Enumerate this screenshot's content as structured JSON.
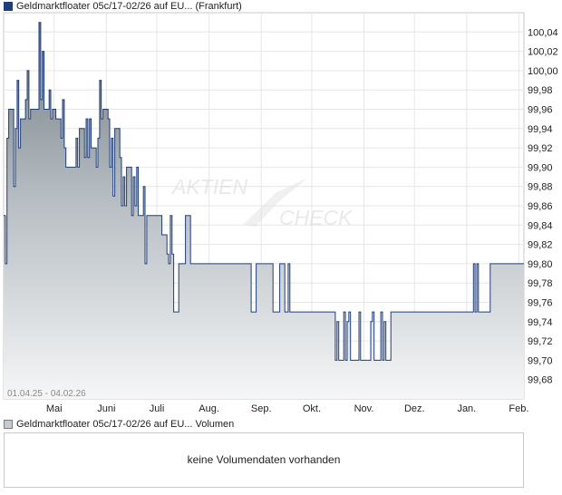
{
  "legend": {
    "price_label": "Geldmarktfloater 05c/17-02/26 auf EU... (Frankfurt)",
    "volume_label": "Geldmarktfloater 05c/17-02/26 auf EU... Volumen",
    "price_color": "#1f3d7a",
    "volume_color": "#c8cbcd"
  },
  "watermark": {
    "line1": "AKTIEN",
    "line2": "CHECK"
  },
  "volume_panel": {
    "message": "keine Volumendaten vorhanden"
  },
  "chart_data": {
    "type": "area",
    "date_range_label": "01.04.25 - 04.02.26",
    "x_range": [
      "2025-04-01",
      "2026-02-04"
    ],
    "ylim": [
      99.66,
      100.06
    ],
    "y_ticks": [
      "100,04",
      "100,02",
      "100,00",
      "99,98",
      "99,96",
      "99,94",
      "99,92",
      "99,90",
      "99,88",
      "99,86",
      "99,84",
      "99,82",
      "99,80",
      "99,78",
      "99,76",
      "99,74",
      "99,72",
      "99,70",
      "99,68"
    ],
    "x_ticks": [
      "Mai",
      "Juni",
      "Juli",
      "Aug.",
      "Sep.",
      "Okt.",
      "Nov.",
      "Dez.",
      "Jan.",
      "Feb."
    ],
    "grid": true,
    "series": [
      {
        "x": [
          "2025-04-01",
          "2025-04-02",
          "2025-04-03",
          "2025-04-04",
          "2025-04-07",
          "2025-04-08",
          "2025-04-09",
          "2025-04-10",
          "2025-04-11",
          "2025-04-14",
          "2025-04-15",
          "2025-04-16",
          "2025-04-17",
          "2025-04-22",
          "2025-04-23",
          "2025-04-24",
          "2025-04-25",
          "2025-04-28",
          "2025-04-29",
          "2025-04-30",
          "2025-05-02",
          "2025-05-05",
          "2025-05-06",
          "2025-05-07",
          "2025-05-08",
          "2025-05-09",
          "2025-05-12",
          "2025-05-13",
          "2025-05-14",
          "2025-05-15",
          "2025-05-16",
          "2025-05-19",
          "2025-05-20",
          "2025-05-21",
          "2025-05-22",
          "2025-05-23",
          "2025-05-26",
          "2025-05-27",
          "2025-05-28",
          "2025-05-29",
          "2025-05-30",
          "2025-06-02",
          "2025-06-03",
          "2025-06-04",
          "2025-06-05",
          "2025-06-06",
          "2025-06-09",
          "2025-06-10",
          "2025-06-11",
          "2025-06-12",
          "2025-06-13",
          "2025-06-16",
          "2025-06-17",
          "2025-06-18",
          "2025-06-19",
          "2025-06-20",
          "2025-06-23",
          "2025-06-24",
          "2025-06-25",
          "2025-06-26",
          "2025-06-27",
          "2025-06-30",
          "2025-07-01",
          "2025-07-02",
          "2025-07-03",
          "2025-07-04",
          "2025-07-07",
          "2025-07-08",
          "2025-07-09",
          "2025-07-10",
          "2025-07-11",
          "2025-07-14",
          "2025-07-15",
          "2025-07-16",
          "2025-07-17",
          "2025-07-18",
          "2025-07-21",
          "2025-07-22",
          "2025-07-23",
          "2025-07-24",
          "2025-07-25",
          "2025-07-28",
          "2025-07-29",
          "2025-07-30",
          "2025-07-31",
          "2025-08-01",
          "2025-08-04",
          "2025-08-05",
          "2025-08-06",
          "2025-08-07",
          "2025-08-08",
          "2025-08-11",
          "2025-08-12",
          "2025-08-13",
          "2025-08-14",
          "2025-08-15",
          "2025-08-18",
          "2025-08-19",
          "2025-08-20",
          "2025-08-21",
          "2025-08-22",
          "2025-08-25",
          "2025-08-26",
          "2025-08-27",
          "2025-08-28",
          "2025-08-29",
          "2025-09-01",
          "2025-09-08",
          "2025-09-12",
          "2025-09-15",
          "2025-09-16",
          "2025-09-17",
          "2025-09-18",
          "2025-09-19",
          "2025-09-22",
          "2025-09-26",
          "2025-09-29",
          "2025-09-30",
          "2025-10-01",
          "2025-10-02",
          "2025-10-06",
          "2025-10-14",
          "2025-10-15",
          "2025-10-16",
          "2025-10-17",
          "2025-10-20",
          "2025-10-21",
          "2025-10-22",
          "2025-10-23",
          "2025-10-24",
          "2025-10-27",
          "2025-10-28",
          "2025-10-29",
          "2025-10-30",
          "2025-10-31",
          "2025-11-03",
          "2025-11-04",
          "2025-11-05",
          "2025-11-06",
          "2025-11-07",
          "2025-11-10",
          "2025-11-11",
          "2025-11-12",
          "2025-11-13",
          "2025-11-14",
          "2025-11-17",
          "2025-11-18",
          "2025-11-19",
          "2025-11-20",
          "2025-11-21",
          "2025-11-24",
          "2025-11-25",
          "2025-11-26",
          "2025-11-27",
          "2025-11-28",
          "2025-12-01",
          "2025-12-10",
          "2025-12-20",
          "2025-12-31",
          "2026-01-02",
          "2026-01-05",
          "2026-01-06",
          "2026-01-07",
          "2026-01-08",
          "2026-01-09",
          "2026-01-12",
          "2026-01-13",
          "2026-01-14",
          "2026-01-15",
          "2026-01-16",
          "2026-01-19",
          "2026-01-20",
          "2026-01-21",
          "2026-01-22",
          "2026-01-23",
          "2026-01-26",
          "2026-01-27",
          "2026-01-28",
          "2026-01-29",
          "2026-01-30",
          "2026-02-02",
          "2026-02-03",
          "2026-02-04"
        ],
        "y": [
          99.85,
          99.8,
          99.93,
          99.96,
          99.88,
          99.94,
          99.99,
          99.92,
          99.95,
          99.97,
          100.0,
          99.95,
          99.96,
          100.05,
          99.97,
          100.02,
          99.96,
          99.98,
          99.95,
          99.96,
          99.95,
          99.93,
          99.97,
          99.92,
          99.9,
          99.9,
          99.9,
          99.9,
          99.93,
          99.9,
          99.94,
          99.91,
          99.95,
          99.91,
          99.95,
          99.92,
          99.9,
          99.93,
          99.99,
          99.95,
          99.96,
          99.95,
          99.9,
          99.93,
          99.87,
          99.94,
          99.91,
          99.86,
          99.89,
          99.86,
          99.9,
          99.85,
          99.89,
          99.86,
          99.9,
          99.85,
          99.88,
          99.8,
          99.85,
          99.85,
          99.85,
          99.85,
          99.85,
          99.85,
          99.85,
          99.83,
          99.81,
          99.8,
          99.85,
          99.81,
          99.75,
          99.8,
          99.8,
          99.8,
          99.8,
          99.85,
          99.8,
          99.8,
          99.8,
          99.8,
          99.8,
          99.8,
          99.8,
          99.8,
          99.8,
          99.8,
          99.8,
          99.8,
          99.8,
          99.8,
          99.8,
          99.8,
          99.8,
          99.8,
          99.8,
          99.8,
          99.8,
          99.8,
          99.8,
          99.8,
          99.8,
          99.8,
          99.75,
          99.75,
          99.75,
          99.8,
          99.8,
          99.75,
          99.8,
          99.75,
          99.75,
          99.8,
          99.75,
          99.75,
          99.75,
          99.75,
          99.75,
          99.75,
          99.75,
          99.75,
          99.75,
          99.75,
          99.7,
          99.74,
          99.7,
          99.75,
          99.7,
          99.74,
          99.75,
          99.7,
          99.7,
          99.7,
          99.75,
          99.7,
          99.7,
          99.7,
          99.7,
          99.74,
          99.75,
          99.7,
          99.7,
          99.75,
          99.7,
          99.74,
          99.7,
          99.75,
          99.75,
          99.75,
          99.75,
          99.75,
          99.75,
          99.75,
          99.75,
          99.75,
          99.75,
          99.75,
          99.75,
          99.75,
          99.75,
          99.75,
          99.8,
          99.75,
          99.8,
          99.75,
          99.75,
          99.75,
          99.75,
          99.75,
          99.8,
          99.8,
          99.8,
          99.8,
          99.8,
          99.8,
          99.8,
          99.8,
          99.8,
          99.8,
          99.8,
          99.8,
          99.8,
          99.8,
          99.8
        ]
      }
    ]
  }
}
